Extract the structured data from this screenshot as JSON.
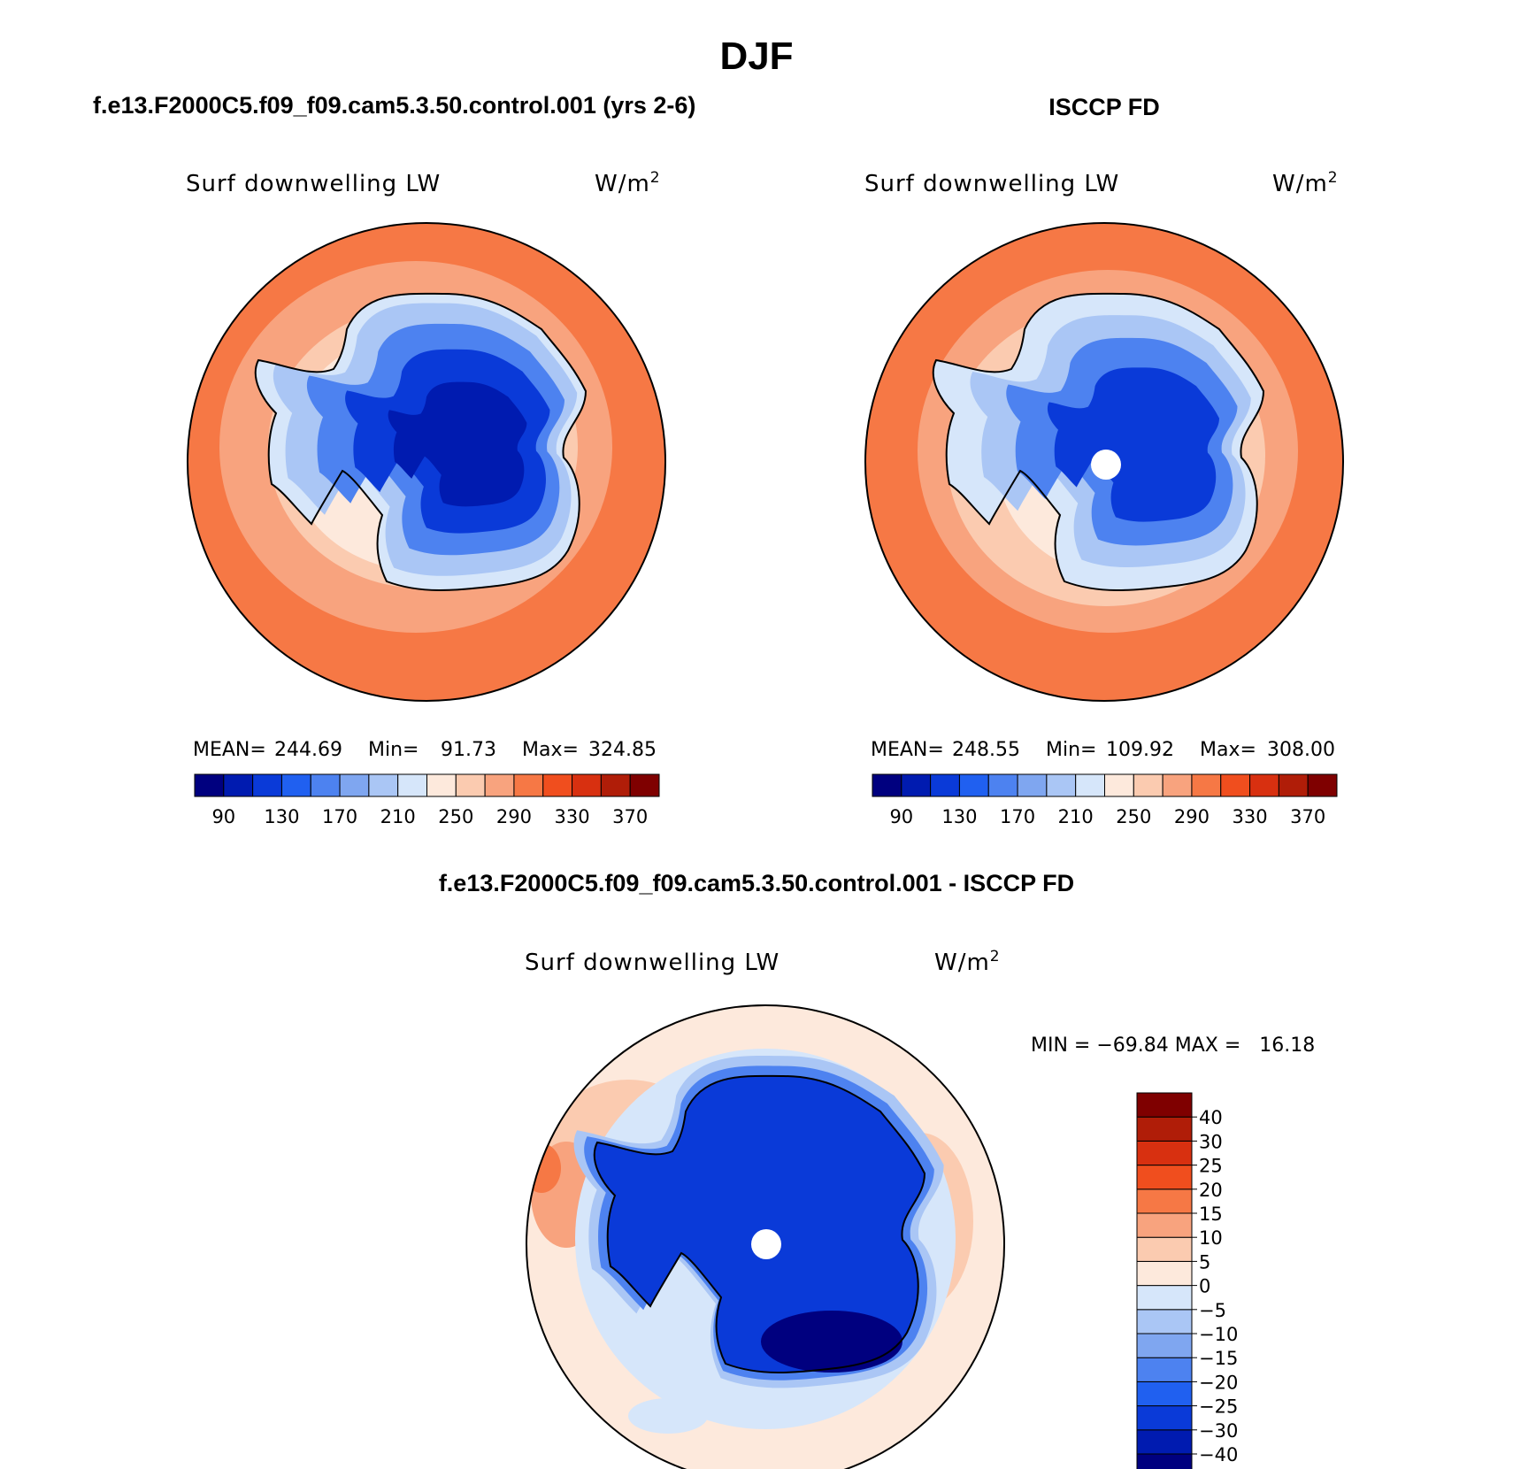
{
  "figure": {
    "title": "DJF",
    "variable": "Surf downwelling LW",
    "units_base": "W/m",
    "units_exp": "2"
  },
  "panels": [
    {
      "id": "model",
      "title": "f.e13.F2000C5.f09_f09.cam5.3.50.control.001 (yrs 2-6)",
      "stats": {
        "mean_label": "MEAN=",
        "mean": "244.69",
        "min_label": "Min=",
        "min": "91.73",
        "max_label": "Max=",
        "max": "324.85"
      },
      "pole_hole": false
    },
    {
      "id": "obs",
      "title": "ISCCP FD",
      "stats": {
        "mean_label": "MEAN=",
        "mean": "248.55",
        "min_label": "Min=",
        "min": "109.92",
        "max_label": "Max=",
        "max": "308.00"
      },
      "pole_hole": true
    }
  ],
  "difference": {
    "title": "f.e13.F2000C5.f09_f09.cam5.3.50.control.001 - ISCCP FD",
    "minmax_text": "MIN = −69.84 MAX =   16.18"
  },
  "colorbars": {
    "field": {
      "colors": [
        "#00007f",
        "#001bb0",
        "#0a3ad8",
        "#2060f0",
        "#4d82f0",
        "#7fa6f0",
        "#aac6f5",
        "#d6e6fa",
        "#fde9dc",
        "#fbcbb0",
        "#f8a37e",
        "#f67845",
        "#f04e1e",
        "#d83010",
        "#b01d08",
        "#7f0000"
      ],
      "labels": [
        "90",
        "130",
        "170",
        "210",
        "250",
        "290",
        "330",
        "370"
      ]
    },
    "diff": {
      "colors": [
        "#00007f",
        "#001bb0",
        "#0a3ad8",
        "#2060f0",
        "#4d82f0",
        "#7fa6f0",
        "#aac6f5",
        "#d6e6fa",
        "#fde9dc",
        "#fbcbb0",
        "#f8a37e",
        "#f67845",
        "#f04e1e",
        "#d83010",
        "#b01d08",
        "#7f0000"
      ],
      "labels": [
        "−40",
        "−30",
        "−25",
        "−20",
        "−15",
        "−10",
        "−5",
        "0",
        "5",
        "10",
        "15",
        "20",
        "25",
        "30",
        "40"
      ]
    }
  },
  "map_colors": {
    "ocean_warm": "#f67845",
    "ocean_mid": "#f8a37e",
    "ocean_light": "#fbcbb0",
    "ocean_pale": "#fde9dc",
    "ice_pale": "#d6e6fa",
    "ice_light": "#aac6f5",
    "ice_mid": "#4d82f0",
    "ice_deep": "#0a3ad8",
    "ice_core": "#001bb0",
    "ice_darkest": "#00007f"
  }
}
